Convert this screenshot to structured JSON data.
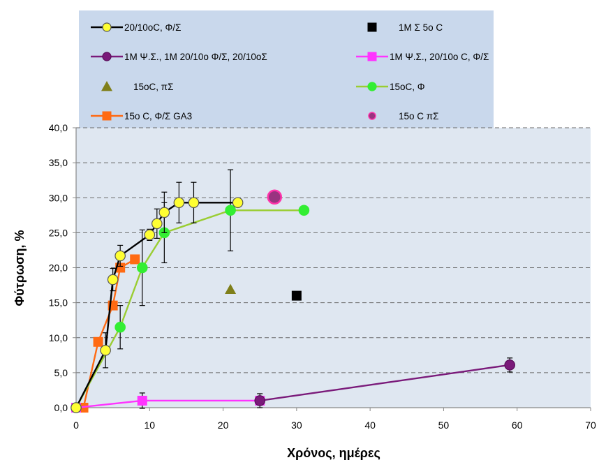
{
  "chart_data": {
    "type": "scatter",
    "title": "",
    "xlabel": "Χρόνος, ημέρες",
    "ylabel": "Φύτρωση, %",
    "xlim": [
      0,
      70
    ],
    "ylim": [
      0,
      40
    ],
    "x_ticks": [
      "0",
      "10",
      "20",
      "30",
      "40",
      "50",
      "60",
      "70"
    ],
    "y_ticks": [
      "0,0",
      "5,0",
      "10,0",
      "15,0",
      "20,0",
      "25,0",
      "30,0",
      "35,0",
      "40,0"
    ],
    "grid": "horizontal dashed",
    "legend_position": "top",
    "colors": {
      "plot_bg": "#dfe7f1",
      "legend_bg": "#c9d8ec",
      "grid": "#6a6a6a",
      "axis": "#888888"
    },
    "series": [
      {
        "name": "20/10oC, Φ/Σ",
        "style": "line-circle",
        "line": "#000000",
        "fill": "#ffff33",
        "edge": "#555555",
        "x": [
          0,
          4,
          5,
          6,
          10,
          11,
          12,
          14,
          16,
          22
        ],
        "y": [
          0,
          8.2,
          18.3,
          21.7,
          24.7,
          26.3,
          27.9,
          29.3,
          29.3,
          29.3
        ],
        "err": [
          0,
          2.5,
          1.6,
          1.5,
          0.8,
          2.1,
          2.9,
          2.9,
          2.9,
          0
        ]
      },
      {
        "name": "1M Σ 5o C",
        "style": "square",
        "fill": "#000000",
        "x": [
          30
        ],
        "y": [
          16
        ]
      },
      {
        "name": "1M Ψ.Σ., 1M 20/10o Φ/Σ, 20/10οΣ",
        "style": "line-circle",
        "line": "#7a1a7a",
        "fill": "#7a1a7a",
        "edge": "#5a0e5a",
        "x": [
          25,
          59
        ],
        "y": [
          1,
          6.1
        ],
        "err": [
          1,
          1
        ]
      },
      {
        "name": "1M Ψ.Σ., 20/10o C, Φ/Σ",
        "style": "line-square",
        "line": "#ff33ff",
        "fill": "#ff33ff",
        "x": [
          0,
          9,
          25
        ],
        "y": [
          0,
          1,
          1
        ],
        "err": [
          0,
          1.1,
          0
        ]
      },
      {
        "name": "15oC, πΣ",
        "style": "triangle",
        "fill": "#7f7f1a",
        "x": [
          21
        ],
        "y": [
          16.9
        ]
      },
      {
        "name": "15oC, Φ",
        "style": "line-circle",
        "line": "#9acd32",
        "fill": "#33ee33",
        "edge": "#33ee33",
        "x": [
          0,
          6,
          9,
          12,
          21,
          31
        ],
        "y": [
          0,
          11.5,
          20,
          25,
          28.2,
          28.2
        ],
        "err": [
          0,
          3.1,
          5.4,
          4.3,
          5.8,
          0
        ]
      },
      {
        "name": "15o C, Φ/Σ GA3",
        "style": "line-square",
        "line": "#ff6a13",
        "fill": "#ff6a13",
        "x": [
          1,
          3,
          5,
          6,
          8
        ],
        "y": [
          0,
          9.4,
          14.6,
          20,
          21.2
        ],
        "err": [
          0,
          0,
          0,
          0,
          0
        ]
      },
      {
        "name": "15o C πΣ",
        "style": "circle-big",
        "fill": "#993380",
        "edge": "#ff33aa",
        "x": [
          27
        ],
        "y": [
          30.1
        ]
      }
    ]
  }
}
